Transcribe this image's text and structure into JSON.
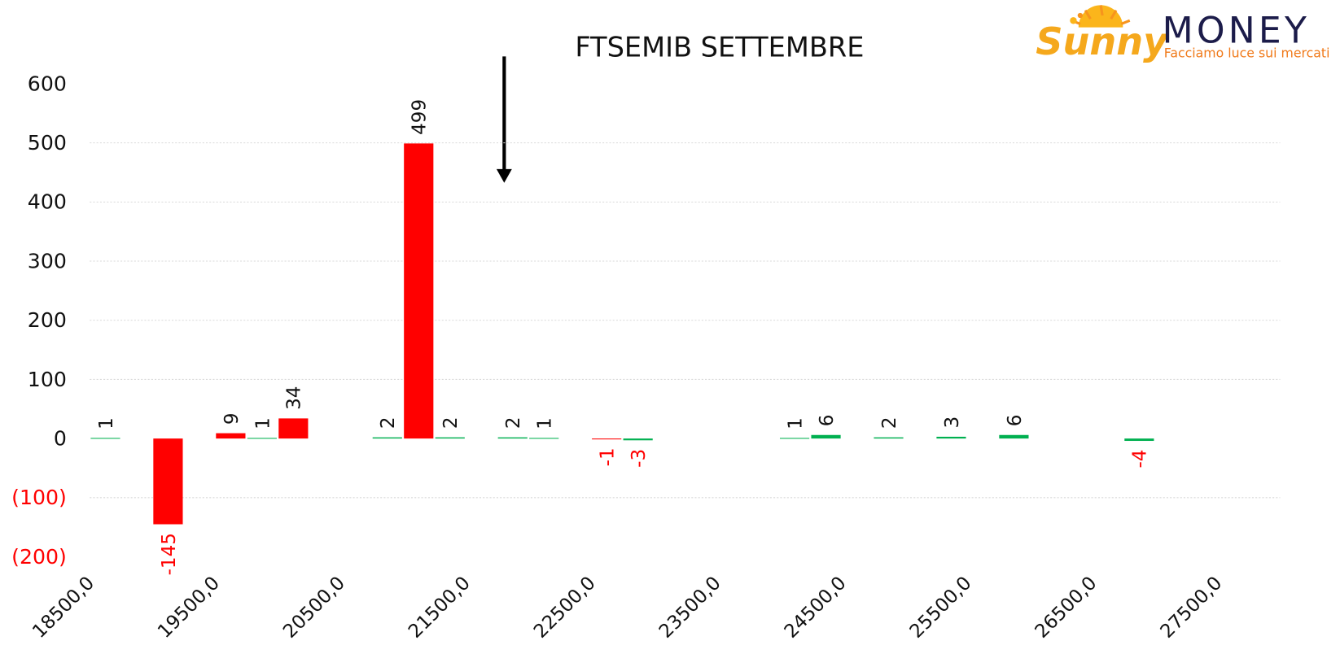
{
  "chart_data": {
    "type": "bar",
    "title": "FTSEMIB SETTEMBRE",
    "series": [
      {
        "values": [
          1,
          -145,
          9,
          1,
          34,
          2,
          499,
          2,
          2,
          1,
          -1,
          -3,
          1,
          6,
          2,
          3,
          6,
          -4
        ],
        "colors": [
          "#00b050",
          "#ff0000",
          "#ff0000",
          "#00b050",
          "#ff0000",
          "#00b050",
          "#ff0000",
          "#00b050",
          "#00b050",
          "#00b050",
          "#ff0000",
          "#00b050",
          "#00b050",
          "#00b050",
          "#00b050",
          "#00b050",
          "#00b050",
          "#00b050"
        ]
      }
    ],
    "x": [
      18500,
      19000,
      19500,
      19750,
      20000,
      20750,
      21000,
      21250,
      21750,
      22000,
      22500,
      22750,
      24000,
      24250,
      24750,
      25250,
      25750,
      26750
    ],
    "xlim": [
      18375,
      27875
    ],
    "xticks": [
      {
        "value": 18500,
        "label": "18500,0"
      },
      {
        "value": 19500,
        "label": "19500,0"
      },
      {
        "value": 20500,
        "label": "20500,0"
      },
      {
        "value": 21500,
        "label": "21500,0"
      },
      {
        "value": 22500,
        "label": "22500,0"
      },
      {
        "value": 23500,
        "label": "23500,0"
      },
      {
        "value": 24500,
        "label": "24500,0"
      },
      {
        "value": 25500,
        "label": "25500,0"
      },
      {
        "value": 26500,
        "label": "26500,0"
      },
      {
        "value": 27500,
        "label": "27500,0"
      }
    ],
    "ylim": [
      -200,
      600
    ],
    "yticks": [
      {
        "value": -200,
        "label": "(200)"
      },
      {
        "value": -100,
        "label": "(100)"
      },
      0,
      100,
      200,
      300,
      400,
      500,
      600
    ],
    "grid": true,
    "negative_color": "#ff0000"
  },
  "logo": {
    "brand": "Sunny",
    "name": "MONEY",
    "tagline": "Facciamo luce sui mercati"
  }
}
